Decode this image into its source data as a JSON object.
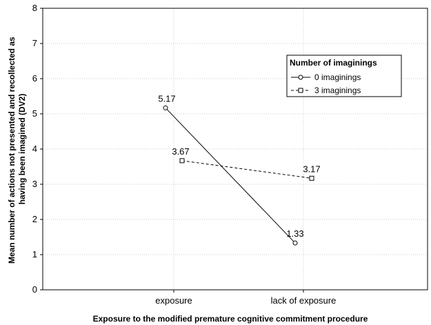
{
  "chart_data": {
    "type": "line",
    "categories": [
      "exposure",
      "lack of exposure"
    ],
    "xlabel": "Exposure to the modified premature cognitive commitment procedure",
    "ylabel_lines": [
      "Mean number of actions not presented and recollected as",
      "having been imagined (DV2)"
    ],
    "ylim": [
      0,
      8
    ],
    "yticks": [
      "0",
      "1",
      "2",
      "3",
      "4",
      "5",
      "6",
      "7",
      "8"
    ],
    "grid": true,
    "legend_title": "Number of imaginings",
    "legend_position": "top-right",
    "series": [
      {
        "name": "0 imaginings",
        "values": [
          5.17,
          1.33
        ],
        "labels": [
          "5.17",
          "1.33"
        ],
        "line_style": "solid",
        "marker": "circle",
        "color": "#000000"
      },
      {
        "name": "3 imaginings",
        "values": [
          3.67,
          3.17
        ],
        "labels": [
          "3.67",
          "3.17"
        ],
        "line_style": "dashed",
        "marker": "square",
        "color": "#000000"
      }
    ]
  }
}
